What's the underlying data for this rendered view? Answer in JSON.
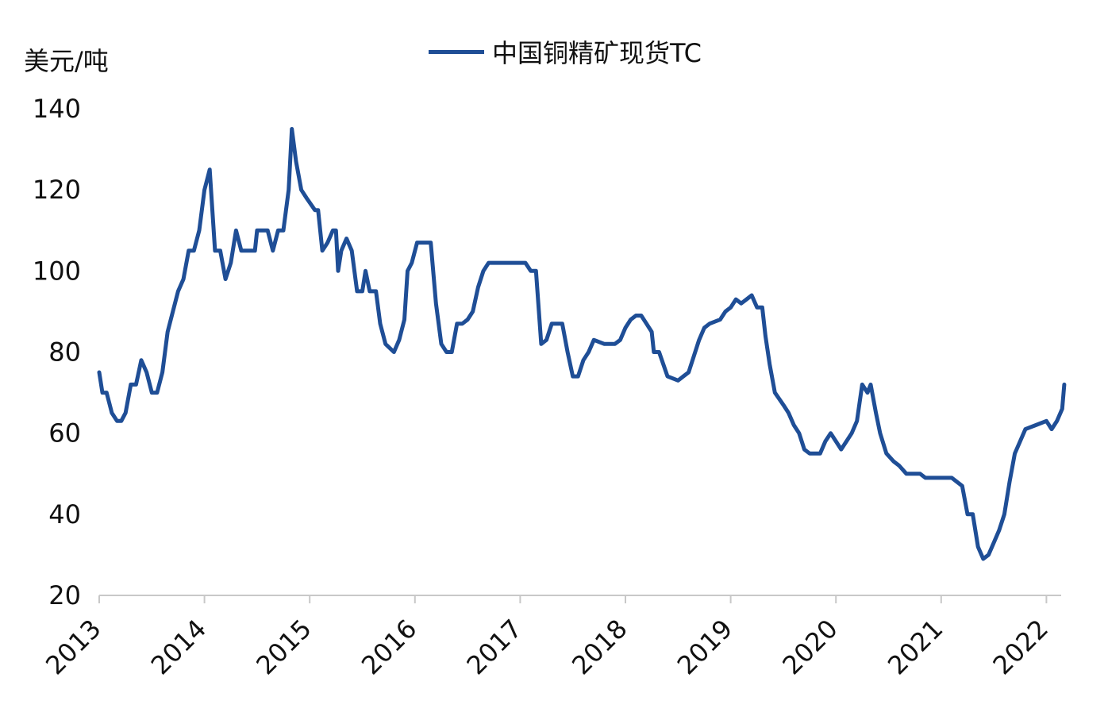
{
  "chart_data": {
    "type": "line",
    "ylabel": "美元/吨",
    "ylim": [
      20,
      140
    ],
    "yticks": [
      "20",
      "40",
      "60",
      "80",
      "100",
      "120",
      "140"
    ],
    "xlim": [
      2013.0,
      2022.18
    ],
    "xticks": [
      "2013",
      "2014",
      "2015",
      "2016",
      "2017",
      "2018",
      "2019",
      "2020",
      "2021",
      "2022"
    ],
    "grid": false,
    "legend": "top-center",
    "color": "#1f4e96",
    "series": [
      {
        "name": "中国铜精矿现货TC",
        "points": [
          [
            2013.0,
            75
          ],
          [
            2013.03,
            70
          ],
          [
            2013.07,
            70
          ],
          [
            2013.12,
            65
          ],
          [
            2013.17,
            63
          ],
          [
            2013.21,
            63
          ],
          [
            2013.25,
            65
          ],
          [
            2013.3,
            72
          ],
          [
            2013.35,
            72
          ],
          [
            2013.4,
            78
          ],
          [
            2013.45,
            75
          ],
          [
            2013.5,
            70
          ],
          [
            2013.55,
            70
          ],
          [
            2013.6,
            75
          ],
          [
            2013.65,
            85
          ],
          [
            2013.7,
            90
          ],
          [
            2013.75,
            95
          ],
          [
            2013.8,
            98
          ],
          [
            2013.85,
            105
          ],
          [
            2013.9,
            105
          ],
          [
            2013.95,
            110
          ],
          [
            2014.0,
            120
          ],
          [
            2014.05,
            125
          ],
          [
            2014.1,
            105
          ],
          [
            2014.15,
            105
          ],
          [
            2014.2,
            98
          ],
          [
            2014.25,
            102
          ],
          [
            2014.3,
            110
          ],
          [
            2014.35,
            105
          ],
          [
            2014.42,
            105
          ],
          [
            2014.48,
            105
          ],
          [
            2014.5,
            110
          ],
          [
            2014.55,
            110
          ],
          [
            2014.6,
            110
          ],
          [
            2014.65,
            105
          ],
          [
            2014.7,
            110
          ],
          [
            2014.75,
            110
          ],
          [
            2014.8,
            120
          ],
          [
            2014.83,
            135
          ],
          [
            2014.87,
            127
          ],
          [
            2014.92,
            120
          ],
          [
            2014.97,
            118
          ],
          [
            2015.05,
            115
          ],
          [
            2015.08,
            115
          ],
          [
            2015.12,
            105
          ],
          [
            2015.17,
            107
          ],
          [
            2015.22,
            110
          ],
          [
            2015.25,
            110
          ],
          [
            2015.27,
            100
          ],
          [
            2015.3,
            105
          ],
          [
            2015.35,
            108
          ],
          [
            2015.4,
            105
          ],
          [
            2015.45,
            95
          ],
          [
            2015.5,
            95
          ],
          [
            2015.53,
            100
          ],
          [
            2015.57,
            95
          ],
          [
            2015.63,
            95
          ],
          [
            2015.67,
            87
          ],
          [
            2015.72,
            82
          ],
          [
            2015.8,
            80
          ],
          [
            2015.85,
            83
          ],
          [
            2015.9,
            88
          ],
          [
            2015.93,
            100
          ],
          [
            2015.97,
            102
          ],
          [
            2016.02,
            107
          ],
          [
            2016.15,
            107
          ],
          [
            2016.2,
            92
          ],
          [
            2016.25,
            82
          ],
          [
            2016.3,
            80
          ],
          [
            2016.35,
            80
          ],
          [
            2016.4,
            87
          ],
          [
            2016.45,
            87
          ],
          [
            2016.5,
            88
          ],
          [
            2016.55,
            90
          ],
          [
            2016.6,
            96
          ],
          [
            2016.65,
            100
          ],
          [
            2016.7,
            102
          ],
          [
            2016.9,
            102
          ],
          [
            2017.05,
            102
          ],
          [
            2017.1,
            100
          ],
          [
            2017.15,
            100
          ],
          [
            2017.2,
            82
          ],
          [
            2017.25,
            83
          ],
          [
            2017.3,
            87
          ],
          [
            2017.4,
            87
          ],
          [
            2017.45,
            80
          ],
          [
            2017.5,
            74
          ],
          [
            2017.55,
            74
          ],
          [
            2017.6,
            78
          ],
          [
            2017.65,
            80
          ],
          [
            2017.7,
            83
          ],
          [
            2017.8,
            82
          ],
          [
            2017.9,
            82
          ],
          [
            2017.95,
            83
          ],
          [
            2018.0,
            86
          ],
          [
            2018.05,
            88
          ],
          [
            2018.1,
            89
          ],
          [
            2018.15,
            89
          ],
          [
            2018.2,
            87
          ],
          [
            2018.25,
            85
          ],
          [
            2018.27,
            80
          ],
          [
            2018.32,
            80
          ],
          [
            2018.4,
            74
          ],
          [
            2018.5,
            73
          ],
          [
            2018.55,
            74
          ],
          [
            2018.6,
            75
          ],
          [
            2018.65,
            79
          ],
          [
            2018.7,
            83
          ],
          [
            2018.75,
            86
          ],
          [
            2018.8,
            87
          ],
          [
            2018.9,
            88
          ],
          [
            2018.95,
            90
          ],
          [
            2019.0,
            91
          ],
          [
            2019.05,
            93
          ],
          [
            2019.1,
            92
          ],
          [
            2019.15,
            93
          ],
          [
            2019.2,
            94
          ],
          [
            2019.25,
            91
          ],
          [
            2019.3,
            91
          ],
          [
            2019.33,
            84
          ],
          [
            2019.37,
            77
          ],
          [
            2019.42,
            70
          ],
          [
            2019.5,
            67
          ],
          [
            2019.55,
            65
          ],
          [
            2019.6,
            62
          ],
          [
            2019.65,
            60
          ],
          [
            2019.7,
            56
          ],
          [
            2019.75,
            55
          ],
          [
            2019.85,
            55
          ],
          [
            2019.9,
            58
          ],
          [
            2019.95,
            60
          ],
          [
            2020.0,
            58
          ],
          [
            2020.05,
            56
          ],
          [
            2020.1,
            58
          ],
          [
            2020.15,
            60
          ],
          [
            2020.2,
            63
          ],
          [
            2020.25,
            72
          ],
          [
            2020.3,
            70
          ],
          [
            2020.33,
            72
          ],
          [
            2020.38,
            65
          ],
          [
            2020.42,
            60
          ],
          [
            2020.48,
            55
          ],
          [
            2020.55,
            53
          ],
          [
            2020.6,
            52
          ],
          [
            2020.67,
            50
          ],
          [
            2020.8,
            50
          ],
          [
            2020.85,
            49
          ],
          [
            2021.0,
            49
          ],
          [
            2021.1,
            49
          ],
          [
            2021.15,
            48
          ],
          [
            2021.2,
            47
          ],
          [
            2021.25,
            40
          ],
          [
            2021.3,
            40
          ],
          [
            2021.35,
            32
          ],
          [
            2021.4,
            29
          ],
          [
            2021.45,
            30
          ],
          [
            2021.5,
            33
          ],
          [
            2021.55,
            36
          ],
          [
            2021.6,
            40
          ],
          [
            2021.65,
            48
          ],
          [
            2021.7,
            55
          ],
          [
            2021.75,
            58
          ],
          [
            2021.8,
            61
          ],
          [
            2021.9,
            62
          ],
          [
            2022.0,
            63
          ],
          [
            2022.05,
            61
          ],
          [
            2022.1,
            63
          ],
          [
            2022.15,
            66
          ],
          [
            2022.17,
            72
          ]
        ]
      }
    ]
  }
}
